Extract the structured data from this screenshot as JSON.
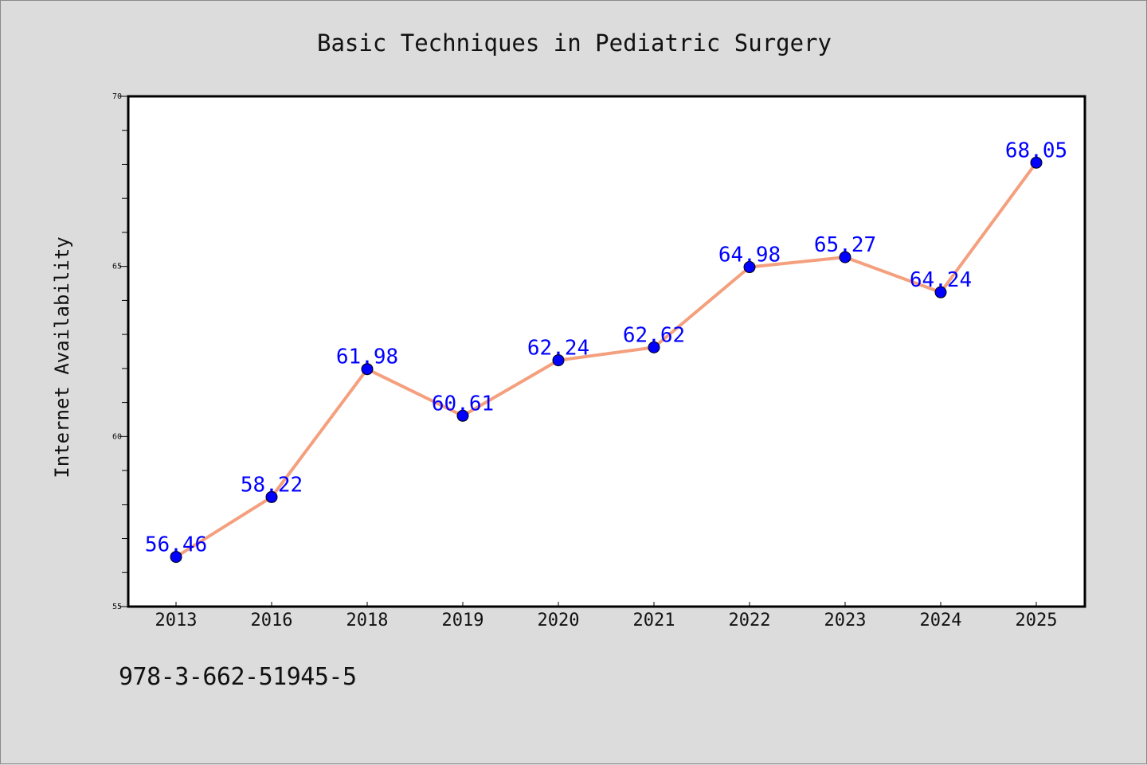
{
  "chart_data": {
    "type": "line",
    "title": "Basic Techniques in Pediatric Surgery",
    "xlabel": "",
    "ylabel": "Internet Availability",
    "categories": [
      "2013",
      "2016",
      "2018",
      "2019",
      "2020",
      "2021",
      "2022",
      "2023",
      "2024",
      "2025"
    ],
    "values": [
      56.46,
      58.22,
      61.98,
      60.61,
      62.24,
      62.62,
      64.98,
      65.27,
      64.24,
      68.05
    ],
    "data_labels": [
      "56.46",
      "58.22",
      "61.98",
      "60.61",
      "62.24",
      "62.62",
      "64.98",
      "65.27",
      "64.24",
      "68.05"
    ],
    "ylim": [
      55,
      70
    ],
    "y_ticks": [
      "55",
      "60",
      "65",
      "70"
    ],
    "y_tick_values": [
      55,
      60,
      65,
      70
    ],
    "grid": false,
    "legend": "none",
    "colors": {
      "line": "#f4a07e",
      "marker": "#0000ff",
      "data_label": "#0000ff",
      "background": "#dcdcdc",
      "plot_background": "#ffffff"
    }
  },
  "footer": {
    "code": "978-3-662-51945-5"
  }
}
